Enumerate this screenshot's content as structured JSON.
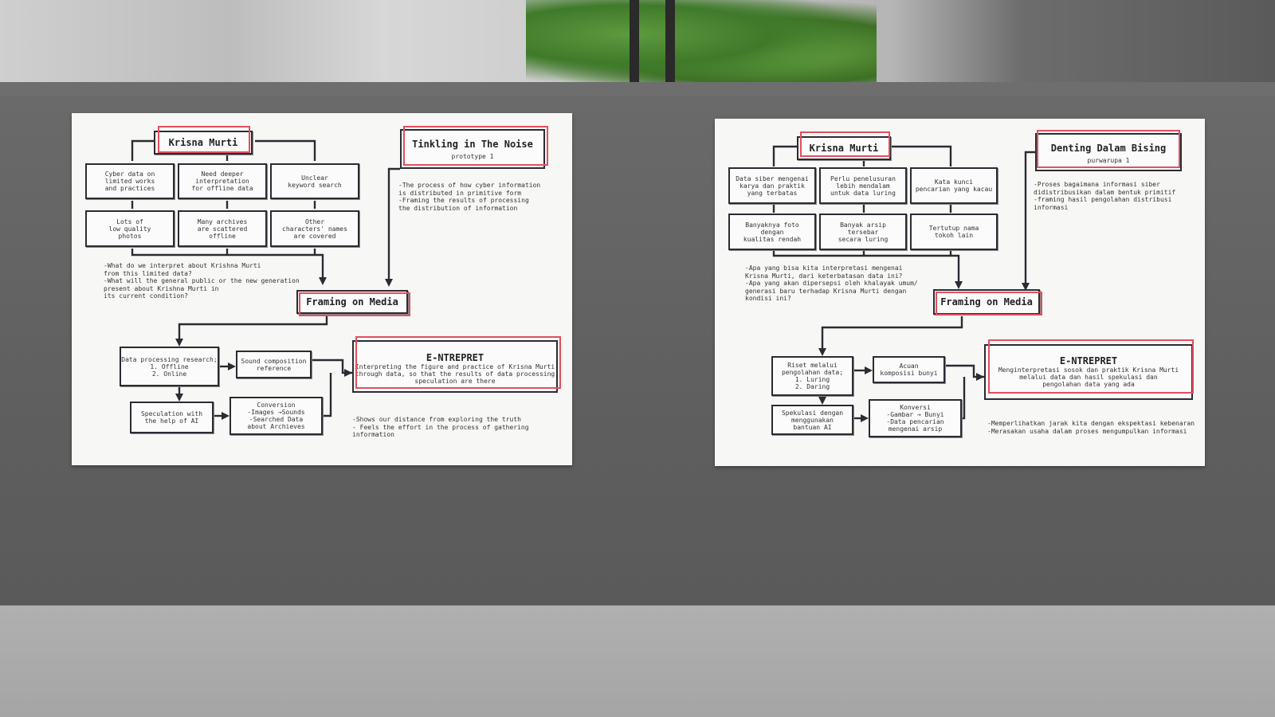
{
  "colors": {
    "accent": "#e05060",
    "ink": "#2b2b33",
    "board": "#f7f7f5",
    "wall": "#5f5f5f"
  },
  "left_board": {
    "root": "Krisna Murti",
    "row1": [
      "Cyber data on\nlimited works\nand practices",
      "Need deeper\ninterpretation\nfor offline data",
      "Unclear\nkeyword search"
    ],
    "row2": [
      "Lots of\nlow quality\nphotos",
      "Many archives\nare scattered\noffline",
      "Other\ncharacters' names\nare covered"
    ],
    "questions": "-What do we interpret about Krishna Murti\n from this limited data?\n-What will the general public or the new generation\n present about Krishna Murti in\n its current condition?",
    "title": "Tinkling in The Noise",
    "subtitle": "prototype 1",
    "desc": "-The process of how cyber information\n is distributed in primitive form\n-Framing the results of processing\n the distribution of information",
    "framing": "Framing on Media",
    "process1": "Data processing research;\n1. Offline\n2. Online",
    "process2": "Sound composition\nreference",
    "process3": "Speculation with\nthe help of AI",
    "process4": "Conversion\n-Images →Sounds\n-Searched Data\nabout Archieves",
    "result_title": "E-NTREPRET",
    "result_text": "Interpreting the figure and practice of Krisna Murti\nthrough data, so that the results of data processing\nspeculation are there",
    "outcome": "-Shows our distance from exploring the truth\n- Feels the effort in the process of gathering information"
  },
  "right_board": {
    "root": "Krisna Murti",
    "row1": [
      "Data siber mengenai\nkarya dan praktik\nyang terbatas",
      "Perlu penelusuran\nlebih mendalam\nuntuk data luring",
      "Kata kunci\npencarian yang kacau"
    ],
    "row2": [
      "Banyaknya foto\ndengan\nkualitas rendah",
      "Banyak arsip\ntersebar\nsecara luring",
      "Tertutup nama\ntokoh lain"
    ],
    "questions": "-Apa yang bisa kita interpretasi mengenai\n Krisna Murti, dari keterbatasan data ini?\n-Apa yang akan dipersepsi oleh khalayak umum/\n generasi baru terhadap Krisna Murti dengan\n kondisi ini?",
    "title": "Denting Dalam Bising",
    "subtitle": "purwarupa 1",
    "desc": "-Proses bagaimana informasi siber\n didistribusikan dalam bentuk primitif\n-framing hasil pengolahan distribusi informasi",
    "framing": "Framing on Media",
    "process1": "Riset melalui\npengolahan data;\n1. Luring\n2. Daring",
    "process2": "Acuan\nkomposisi bunyi",
    "process3": "Spekulasi dengan\nmenggunakan\nbantuan AI",
    "process4": "Konversi\n-Gambar → Bunyi\n-Data pencarian\nmengenai arsip",
    "result_title": "E-NTREPRET",
    "result_text": "Menginterpretasi sosok dan praktik Krisna Murti\nmelalui data dan hasil spekulasi dan\npengolahan data yang ada",
    "outcome": "-Memperlihatkan jarak kita dengan ekspektasi kebenaran\n-Merasakan usaha dalam proses mengumpulkan informasi"
  }
}
